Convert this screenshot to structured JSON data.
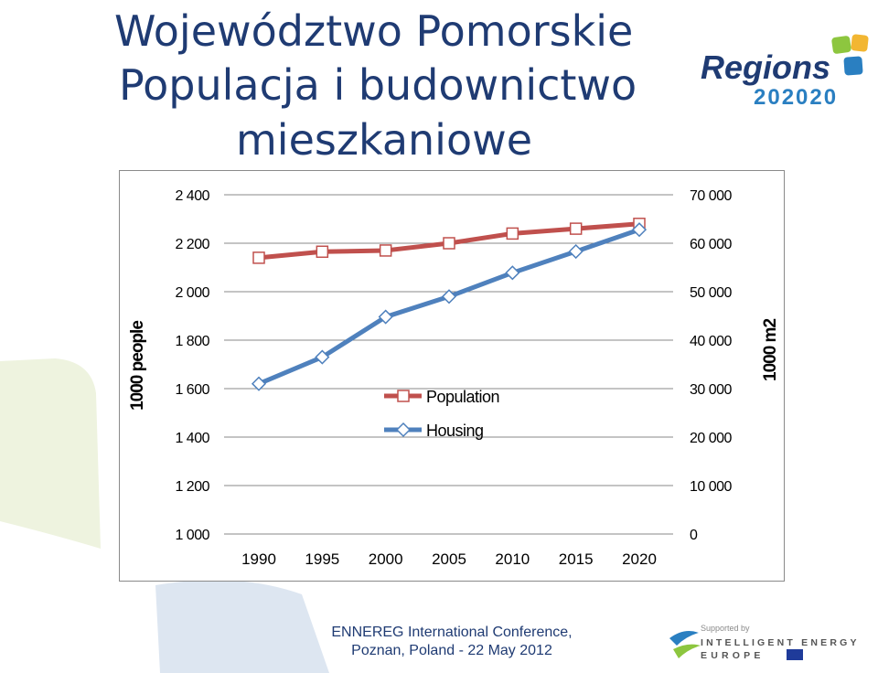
{
  "title": {
    "lines": [
      "Województwo Pomorskie",
      "Populacja i budownictwo",
      "mieszkaniowe"
    ]
  },
  "logos": {
    "regions": {
      "word": "Regions",
      "year": "202020",
      "colors": [
        "#1f3b73",
        "#8dc63f",
        "#f2b632",
        "#2a7fc1"
      ]
    },
    "iee": {
      "supported": "Supported by",
      "line1": "INTELLIGENT ENERGY",
      "line2": "EUROPE"
    }
  },
  "footer": {
    "line1": "ENNEREG International Conference,",
    "line2": "Poznan, Poland - 22 May 2012"
  },
  "colors": {
    "population": "#c0504d",
    "housing": "#4f81bd",
    "title": "#1f3b73"
  },
  "chart_data": {
    "type": "line",
    "x": [
      1990,
      1995,
      2000,
      2005,
      2010,
      2015,
      2020
    ],
    "x_tick_labels": [
      "1990",
      "1995",
      "2000",
      "2005",
      "2010",
      "2015",
      "2020"
    ],
    "y_left": {
      "label": "1000 people",
      "range": [
        1000,
        2400
      ],
      "ticks": [
        1000,
        1200,
        1400,
        1600,
        1800,
        2000,
        2200,
        2400
      ],
      "tick_labels": [
        "1 000",
        "1 200",
        "1 400",
        "1 600",
        "1 800",
        "2 000",
        "2 200",
        "2 400"
      ]
    },
    "y_right": {
      "label": "1000 m2",
      "range": [
        0,
        70000
      ],
      "ticks": [
        0,
        10000,
        20000,
        30000,
        40000,
        50000,
        60000,
        70000
      ],
      "tick_labels": [
        "0",
        "10 000",
        "20 000",
        "30 000",
        "40 000",
        "50 000",
        "60 000",
        "70 000"
      ]
    },
    "series": [
      {
        "name": "Population",
        "axis": "left",
        "marker": "square",
        "values": [
          2140,
          2165,
          2170,
          2200,
          2240,
          2260,
          2280
        ]
      },
      {
        "name": "Housing",
        "axis": "right",
        "marker": "diamond",
        "values": [
          31000,
          36500,
          44800,
          49000,
          53900,
          58300,
          62800
        ]
      }
    ],
    "grid": true,
    "legend": "center"
  }
}
